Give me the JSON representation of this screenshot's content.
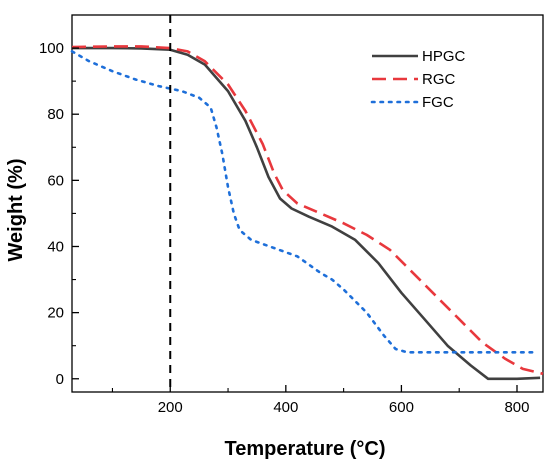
{
  "chart_data": {
    "type": "line",
    "title": "",
    "xlabel": "Temperature (°C)",
    "ylabel": "Weight (%)",
    "xlim": [
      30,
      845
    ],
    "ylim": [
      -4,
      110
    ],
    "x_ticks": [
      200,
      400,
      600,
      800
    ],
    "y_ticks": [
      0,
      20,
      40,
      60,
      80,
      100
    ],
    "grid": false,
    "legend_position": "top-right",
    "reference_line": {
      "x": 200,
      "style": "dashed",
      "color": "#000000"
    },
    "series": [
      {
        "name": "HPGC",
        "color": "#404040",
        "style": "solid",
        "points": [
          [
            30,
            100
          ],
          [
            100,
            100
          ],
          [
            150,
            99.9
          ],
          [
            200,
            99.5
          ],
          [
            230,
            98
          ],
          [
            260,
            95
          ],
          [
            300,
            87
          ],
          [
            330,
            78
          ],
          [
            350,
            70
          ],
          [
            370,
            61
          ],
          [
            390,
            54.5
          ],
          [
            410,
            51.5
          ],
          [
            440,
            49
          ],
          [
            480,
            46
          ],
          [
            520,
            42
          ],
          [
            560,
            35
          ],
          [
            600,
            26
          ],
          [
            640,
            18
          ],
          [
            680,
            10
          ],
          [
            720,
            4
          ],
          [
            750,
            0
          ],
          [
            800,
            0
          ],
          [
            840,
            0.3
          ]
        ]
      },
      {
        "name": "RGC",
        "color": "#e8383d",
        "style": "dashed",
        "points": [
          [
            30,
            100.3
          ],
          [
            100,
            100.5
          ],
          [
            150,
            100.5
          ],
          [
            200,
            100
          ],
          [
            230,
            99
          ],
          [
            260,
            96
          ],
          [
            300,
            89
          ],
          [
            330,
            81
          ],
          [
            360,
            71
          ],
          [
            380,
            62
          ],
          [
            395,
            57
          ],
          [
            420,
            53
          ],
          [
            460,
            50
          ],
          [
            500,
            47
          ],
          [
            540,
            43.5
          ],
          [
            580,
            39
          ],
          [
            620,
            32
          ],
          [
            660,
            25
          ],
          [
            700,
            18
          ],
          [
            740,
            11
          ],
          [
            780,
            6
          ],
          [
            810,
            3
          ],
          [
            845,
            1.5
          ]
        ]
      },
      {
        "name": "FGC",
        "color": "#1e6fd9",
        "style": "dotted",
        "points": [
          [
            30,
            99
          ],
          [
            60,
            96
          ],
          [
            100,
            93
          ],
          [
            140,
            90.5
          ],
          [
            180,
            88.5
          ],
          [
            220,
            87
          ],
          [
            250,
            85
          ],
          [
            270,
            82
          ],
          [
            280,
            76
          ],
          [
            290,
            68
          ],
          [
            300,
            58
          ],
          [
            310,
            50
          ],
          [
            320,
            45
          ],
          [
            340,
            42
          ],
          [
            380,
            39.5
          ],
          [
            420,
            37
          ],
          [
            460,
            32
          ],
          [
            480,
            30
          ],
          [
            500,
            27
          ],
          [
            540,
            20
          ],
          [
            570,
            13
          ],
          [
            590,
            9
          ],
          [
            610,
            8
          ],
          [
            640,
            8
          ],
          [
            700,
            8
          ],
          [
            760,
            8
          ],
          [
            830,
            8
          ]
        ]
      }
    ]
  }
}
